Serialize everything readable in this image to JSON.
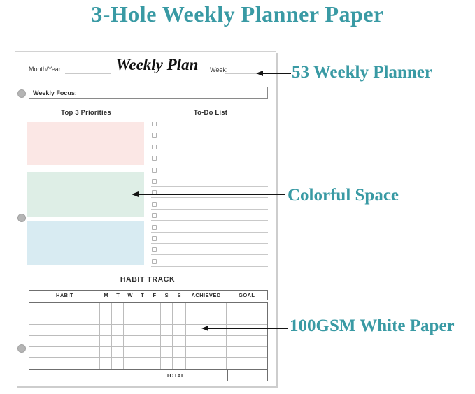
{
  "page": {
    "title": "3-Hole Weekly Planner Paper"
  },
  "colors": {
    "accent_teal": "#399aa4",
    "priority_pink": "#fbe7e5",
    "priority_green": "#deeee6",
    "priority_blue": "#d8ebf2",
    "hole_gray": "#b5b5b5",
    "arrow_black": "#141414"
  },
  "planner": {
    "month_year_label": "Month/Year:",
    "sheet_title": "Weekly Plan",
    "week_label": "Week:",
    "weekly_focus_label": "Weekly Focus:",
    "priorities_heading": "Top 3 Priorities",
    "priority_boxes": [
      "pink",
      "green",
      "blue"
    ],
    "todo_heading": "To-Do List",
    "todo_row_count": 13,
    "habit_track_heading": "HABIT TRACK",
    "habit_table": {
      "columns": [
        "HABIT",
        "M",
        "T",
        "W",
        "T",
        "F",
        "S",
        "S",
        "ACHIEVED",
        "GOAL"
      ],
      "body_row_count": 6,
      "total_label": "TOTAL"
    },
    "hole_count": 3
  },
  "annotations": [
    {
      "label": "53 Weekly Planner"
    },
    {
      "label": "Colorful Space"
    },
    {
      "label": "100GSM White Paper"
    }
  ]
}
